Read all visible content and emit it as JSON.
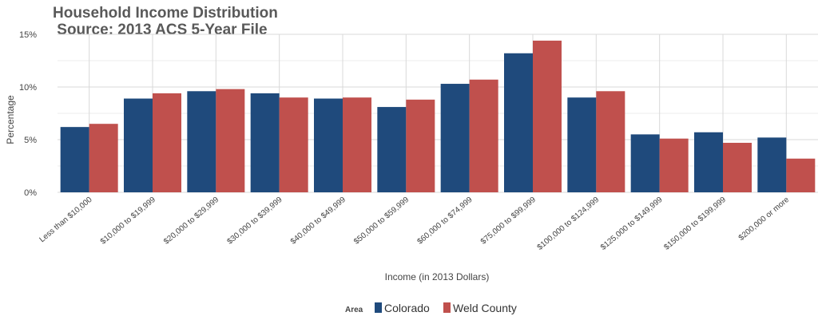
{
  "chart_data": {
    "type": "bar",
    "title_line1": "Household Income Distribution",
    "title_line2": " Source: 2013 ACS 5-Year File",
    "xlabel": "Income (in 2013 Dollars)",
    "ylabel": "Percentage",
    "ylim": [
      0,
      15
    ],
    "yticks": [
      0,
      5,
      10,
      15
    ],
    "ytick_labels": [
      "0%",
      "5%",
      "10%",
      "15%"
    ],
    "grid": true,
    "legend_position": "bottom",
    "legend_title": "Area",
    "categories": [
      "Less than $10,000",
      "$10,000 to $19,999",
      "$20,000 to $29,999",
      "$30,000 to $39,999",
      "$40,000 to $49,999",
      "$50,000 to $59,999",
      "$60,000 to $74,999",
      "$75,000 to $99,999",
      "$100,000 to $124,999",
      "$125,000 to $149,999",
      "$150,000 to $199,999",
      "$200,000 or more"
    ],
    "series": [
      {
        "name": "Colorado",
        "color": "#1f4a7c",
        "values": [
          6.2,
          8.9,
          9.6,
          9.4,
          8.9,
          8.1,
          10.3,
          13.2,
          9.0,
          5.5,
          5.7,
          5.2
        ]
      },
      {
        "name": "Weld County",
        "color": "#c0504d",
        "values": [
          6.5,
          9.4,
          9.8,
          9.0,
          9.0,
          8.8,
          10.7,
          14.4,
          9.6,
          5.1,
          4.7,
          3.2
        ]
      }
    ]
  }
}
